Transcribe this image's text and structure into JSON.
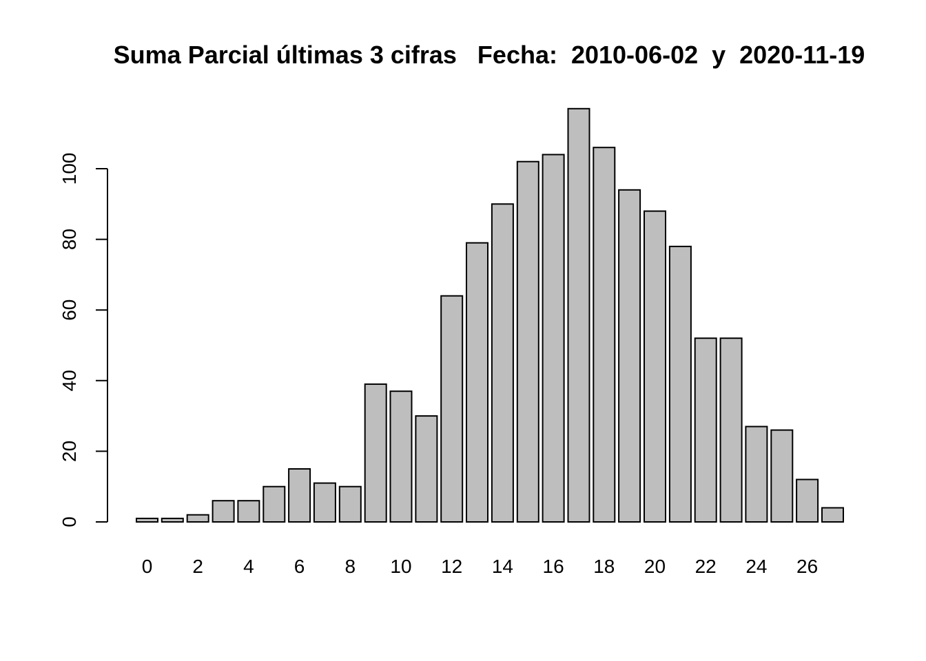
{
  "chart_data": {
    "type": "bar",
    "title": "Suma Parcial últimas 3 cifras   Fecha:  2010-06-02  y  2020-11-19",
    "xlabel": "",
    "ylabel": "",
    "categories": [
      0,
      1,
      2,
      3,
      4,
      5,
      6,
      7,
      8,
      9,
      10,
      11,
      12,
      13,
      14,
      15,
      16,
      17,
      18,
      19,
      20,
      21,
      22,
      23,
      24,
      25,
      26,
      27
    ],
    "x_tick_labels": [
      "0",
      "2",
      "4",
      "6",
      "8",
      "10",
      "12",
      "14",
      "16",
      "18",
      "20",
      "22",
      "24",
      "26"
    ],
    "values": [
      1,
      1,
      2,
      6,
      6,
      10,
      15,
      11,
      10,
      39,
      37,
      30,
      64,
      79,
      90,
      102,
      104,
      117,
      106,
      94,
      88,
      78,
      52,
      52,
      27,
      26,
      12,
      4
    ],
    "ylim": [
      0,
      120
    ],
    "y_ticks": [
      0,
      20,
      40,
      60,
      80,
      100
    ],
    "grid": false,
    "bar_color": "#bebebe",
    "border_color": "#000000"
  }
}
